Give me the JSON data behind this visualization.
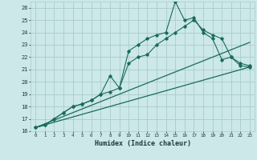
{
  "xlabel": "Humidex (Indice chaleur)",
  "ylabel": "",
  "background_color": "#cce8e8",
  "grid_color": "#aacccc",
  "line_color": "#1a6b5a",
  "xlim": [
    -0.5,
    23.5
  ],
  "ylim": [
    16,
    26.5
  ],
  "xticks": [
    0,
    1,
    2,
    3,
    4,
    5,
    6,
    7,
    8,
    9,
    10,
    11,
    12,
    13,
    14,
    15,
    16,
    17,
    18,
    19,
    20,
    21,
    22,
    23
  ],
  "yticks": [
    16,
    17,
    18,
    19,
    20,
    21,
    22,
    23,
    24,
    25,
    26
  ],
  "series1_x": [
    0,
    1,
    2,
    3,
    4,
    5,
    6,
    7,
    8,
    9,
    10,
    11,
    12,
    13,
    14,
    15,
    16,
    17,
    18,
    19,
    20,
    21,
    22,
    23
  ],
  "series1_y": [
    16.3,
    16.5,
    17.0,
    17.5,
    18.0,
    18.2,
    18.5,
    19.0,
    20.5,
    19.5,
    22.5,
    23.0,
    23.5,
    23.8,
    24.0,
    26.5,
    25.0,
    25.2,
    24.0,
    23.5,
    21.8,
    22.0,
    21.3,
    21.2
  ],
  "series2_x": [
    0,
    1,
    2,
    3,
    4,
    5,
    6,
    7,
    8,
    9,
    10,
    11,
    12,
    13,
    14,
    15,
    16,
    17,
    18,
    19,
    20,
    21,
    22,
    23
  ],
  "series2_y": [
    16.3,
    16.5,
    17.0,
    17.5,
    18.0,
    18.2,
    18.5,
    19.0,
    19.2,
    19.5,
    21.5,
    22.0,
    22.2,
    23.0,
    23.5,
    24.0,
    24.5,
    25.0,
    24.2,
    23.8,
    23.5,
    22.0,
    21.5,
    21.3
  ],
  "series3_x": [
    0,
    23
  ],
  "series3_y": [
    16.3,
    23.2
  ],
  "series4_x": [
    0,
    23
  ],
  "series4_y": [
    16.3,
    21.2
  ]
}
